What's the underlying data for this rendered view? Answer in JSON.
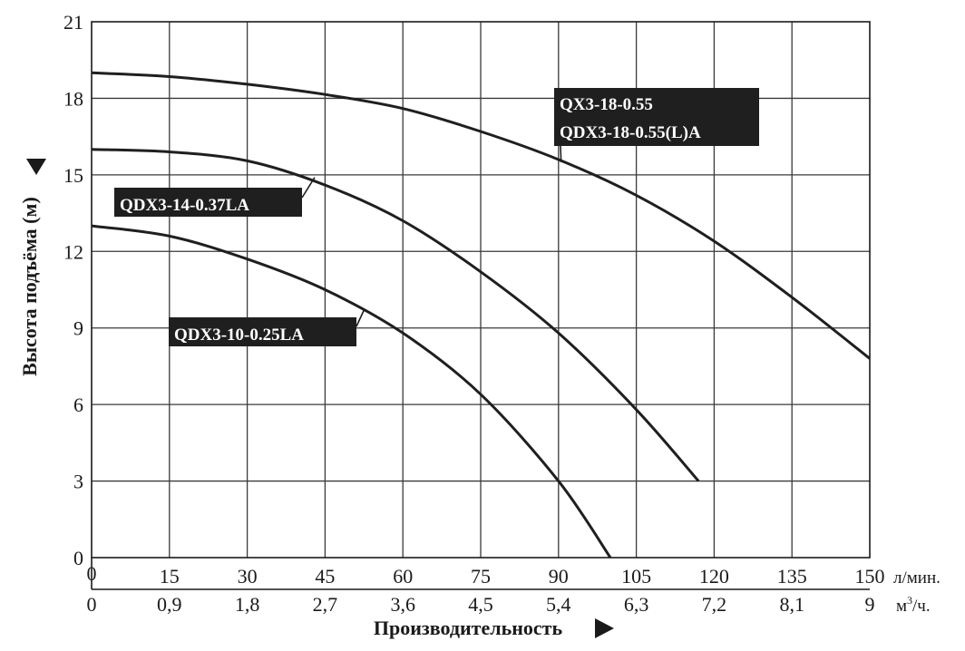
{
  "chart_data": {
    "type": "line",
    "title": "",
    "ylabel": "Высота подъёма (м)",
    "xlabel": "Производительность",
    "x_unit_primary": "л/мин.",
    "x_unit_secondary": "м",
    "x_unit_secondary_sup": "3",
    "x_unit_secondary_tail": "/ч.",
    "xlim": [
      0,
      150
    ],
    "ylim": [
      0,
      21
    ],
    "grid": true,
    "x_ticks": [
      0,
      15,
      30,
      45,
      60,
      75,
      90,
      105,
      120,
      135,
      150
    ],
    "x_tick_labels": [
      "0",
      "15",
      "30",
      "45",
      "60",
      "75",
      "90",
      "105",
      "120",
      "135",
      "150"
    ],
    "x2_tick_labels": [
      "0",
      "0,9",
      "1,8",
      "2,7",
      "3,6",
      "4,5",
      "5,4",
      "6,3",
      "7,2",
      "8,1",
      "9"
    ],
    "y_ticks": [
      0,
      3,
      6,
      9,
      12,
      15,
      18,
      21
    ],
    "y_tick_labels": [
      "0",
      "3",
      "6",
      "9",
      "12",
      "15",
      "18",
      "21"
    ],
    "series": [
      {
        "name": "QX3-18-0.55 / QDX3-18-0.55(L)A",
        "label_lines": [
          "QX3-18-0.55",
          "QDX3-18-0.55(L)A"
        ],
        "x": [
          0,
          15,
          30,
          45,
          60,
          75,
          90,
          105,
          120,
          135,
          150
        ],
        "y": [
          19,
          18.85,
          18.55,
          18.15,
          17.6,
          16.7,
          15.6,
          14.2,
          12.4,
          10.2,
          7.8
        ],
        "label_anchor": [
          90.5,
          15.5
        ]
      },
      {
        "name": "QDX3-14-0.37LA",
        "label_lines": [
          "QDX3-14-0.37LA"
        ],
        "x": [
          0,
          15,
          30,
          45,
          60,
          75,
          90,
          105,
          117
        ],
        "y": [
          16,
          15.9,
          15.55,
          14.6,
          13.2,
          11.2,
          8.8,
          5.8,
          3
        ],
        "label_anchor": [
          43,
          14.9
        ]
      },
      {
        "name": "QDX3-10-0.25LA",
        "label_lines": [
          "QDX3-10-0.25LA"
        ],
        "x": [
          0,
          15,
          30,
          45,
          60,
          75,
          90,
          100
        ],
        "y": [
          13,
          12.6,
          11.7,
          10.5,
          8.8,
          6.4,
          3,
          0
        ],
        "label_anchor": [
          52.5,
          9.7
        ]
      }
    ]
  }
}
